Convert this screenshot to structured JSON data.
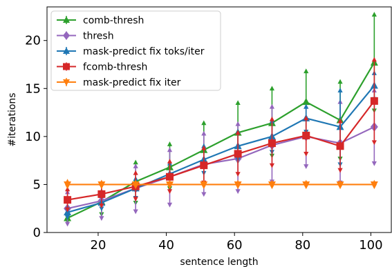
{
  "chart_data": {
    "type": "line",
    "xlabel": "sentence length",
    "ylabel": "#iterations",
    "xlim": [
      5,
      106
    ],
    "ylim": [
      0,
      23.5
    ],
    "xticks": [
      20,
      40,
      60,
      80,
      100
    ],
    "yticks": [
      0,
      5,
      10,
      15,
      20
    ],
    "grid": false,
    "legend_position": "upper-left",
    "x": [
      11,
      21,
      31,
      41,
      51,
      61,
      71,
      81,
      91,
      101
    ],
    "series": [
      {
        "name": "comb-thresh",
        "color": "#2ca02c",
        "marker": "triangle-up",
        "values": [
          1.5,
          3.2,
          5.3,
          6.8,
          8.6,
          10.4,
          11.4,
          13.6,
          11.7,
          17.7
        ],
        "err_low": [
          1.2,
          1.9,
          3.1,
          4.6,
          5.1,
          7.4,
          8.0,
          10.3,
          7.7,
          12.7
        ],
        "err_high": [
          1.9,
          4.3,
          7.3,
          9.2,
          11.4,
          13.5,
          15.0,
          16.8,
          15.7,
          22.7
        ]
      },
      {
        "name": "thresh",
        "color": "#9467bd",
        "marker": "diamond",
        "values": [
          2.5,
          3.3,
          4.6,
          5.8,
          7.1,
          7.7,
          9.1,
          10.0,
          9.3,
          11.0
        ],
        "err_low": [
          0.9,
          1.5,
          2.2,
          2.9,
          4.0,
          4.3,
          5.3,
          6.9,
          5.2,
          7.2
        ],
        "err_high": [
          4.2,
          5.1,
          6.9,
          8.6,
          10.3,
          11.3,
          13.1,
          13.1,
          13.6,
          14.8
        ]
      },
      {
        "name": "mask-predict fix toks/iter",
        "color": "#1f77b4",
        "marker": "triangle-up",
        "values": [
          2.1,
          3.1,
          4.6,
          6.1,
          7.6,
          9.0,
          10.0,
          11.9,
          11.0,
          15.3
        ],
        "err_low": [
          1.6,
          2.5,
          3.6,
          5.0,
          6.2,
          7.6,
          8.4,
          10.5,
          7.1,
          13.9
        ],
        "err_high": [
          2.6,
          3.8,
          5.6,
          7.2,
          9.0,
          10.5,
          11.6,
          13.1,
          14.8,
          16.6
        ]
      },
      {
        "name": "fcomb-thresh",
        "color": "#d62728",
        "marker": "square",
        "values": [
          3.4,
          4.0,
          4.8,
          5.8,
          7.0,
          8.2,
          9.3,
          10.1,
          9.0,
          13.7
        ],
        "err_low": [
          2.4,
          2.8,
          3.5,
          4.3,
          5.2,
          6.1,
          7.0,
          8.2,
          6.5,
          9.4
        ],
        "err_high": [
          4.5,
          5.2,
          6.2,
          7.4,
          8.8,
          10.4,
          11.8,
          11.9,
          11.6,
          18.0
        ]
      },
      {
        "name": "mask-predict fix iter",
        "color": "#ff7f0e",
        "marker": "triangle-down",
        "values": [
          5,
          5,
          5,
          5,
          5,
          5,
          5,
          5,
          5,
          5
        ],
        "err_low": [
          4.8,
          4.8,
          4.8,
          4.8,
          4.8,
          4.8,
          4.8,
          4.8,
          4.8,
          4.8
        ],
        "err_high": [
          5.3,
          5.2,
          5.2,
          5.2,
          5.2,
          5.2,
          5.2,
          5.2,
          5.2,
          5.2
        ]
      }
    ]
  }
}
